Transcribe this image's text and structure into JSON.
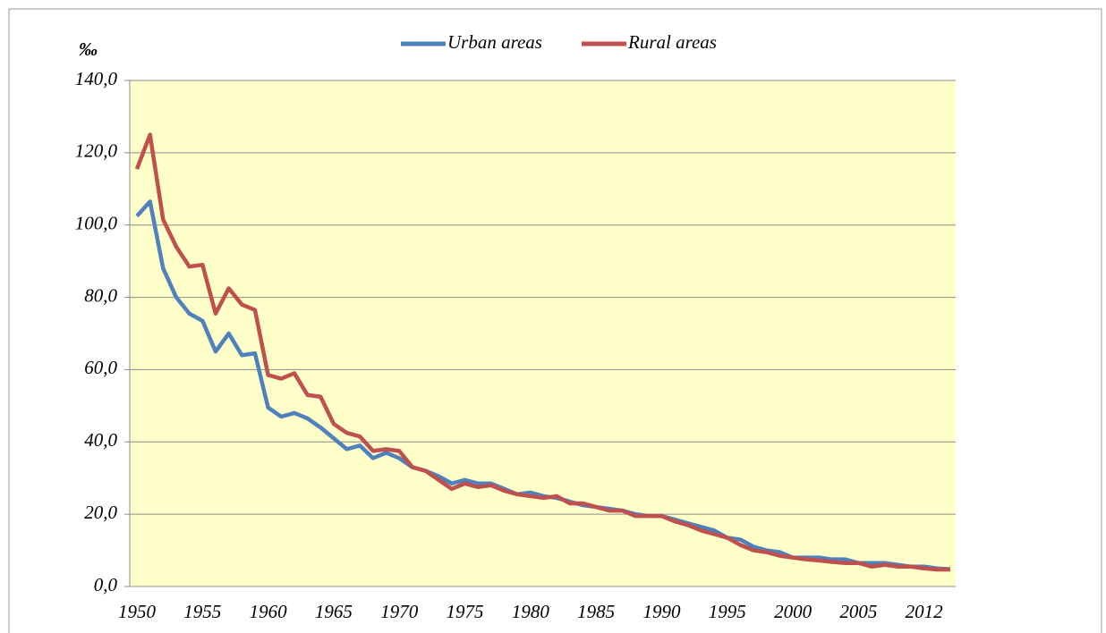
{
  "chart_data": {
    "type": "line",
    "y_label": "‰",
    "categories": [
      "1950",
      null,
      null,
      null,
      null,
      "1955",
      null,
      null,
      null,
      null,
      "1960",
      null,
      null,
      null,
      null,
      "1965",
      null,
      null,
      null,
      null,
      "1970",
      null,
      null,
      null,
      null,
      "1975",
      null,
      null,
      null,
      null,
      "1980",
      null,
      null,
      null,
      null,
      "1985",
      null,
      null,
      null,
      null,
      "1990",
      null,
      null,
      null,
      null,
      "1995",
      null,
      null,
      null,
      null,
      "2000",
      null,
      null,
      null,
      null,
      "2005",
      null,
      null,
      null,
      null,
      "2012",
      null,
      null
    ],
    "series": [
      {
        "name": "Urban areas",
        "color": "#4f81bd",
        "values": [
          102.5,
          106.5,
          88,
          80,
          75.5,
          73.5,
          65,
          70,
          64,
          64.5,
          49.5,
          47,
          48,
          46.5,
          44,
          41,
          38,
          39,
          35.5,
          37,
          35.5,
          33,
          32,
          30.5,
          28.5,
          29.5,
          28.5,
          28.5,
          27,
          25.5,
          26,
          25,
          24.5,
          23.5,
          22.5,
          22,
          21.5,
          21,
          20,
          19.5,
          19.5,
          18.5,
          17.5,
          16.5,
          15.5,
          13.5,
          13,
          11,
          10,
          9.5,
          8,
          8,
          8,
          7.5,
          7.5,
          6.5,
          6.5,
          6.5,
          6,
          5.5,
          5.5,
          5,
          4.8
        ]
      },
      {
        "name": "Rural areas",
        "color": "#c0504d",
        "values": [
          115.5,
          125,
          101.5,
          94,
          88.5,
          89,
          75.5,
          82.5,
          78,
          76.5,
          58.5,
          57.5,
          59,
          53,
          52.5,
          45,
          42.5,
          41.5,
          37.5,
          38,
          37.5,
          33,
          32,
          29.5,
          27,
          28.5,
          27.5,
          28,
          26.5,
          25.5,
          25,
          24.5,
          25,
          23,
          23,
          22,
          21,
          21,
          19.5,
          19.5,
          19.5,
          18,
          17,
          15.5,
          14.5,
          13.5,
          11.5,
          10,
          9.5,
          8.5,
          8,
          7.5,
          7.2,
          6.8,
          6.5,
          6.5,
          5.5,
          6,
          5.5,
          5.5,
          5,
          4.7,
          4.7
        ]
      }
    ],
    "ylim": [
      0,
      140
    ],
    "yticks": [
      {
        "value": 0,
        "label": "0,0"
      },
      {
        "value": 20,
        "label": "20,0"
      },
      {
        "value": 40,
        "label": "40,0"
      },
      {
        "value": 60,
        "label": "60,0"
      },
      {
        "value": 80,
        "label": "80,0"
      },
      {
        "value": 100,
        "label": "100,0"
      },
      {
        "value": 120,
        "label": "120,0"
      },
      {
        "value": 140,
        "label": "140,0"
      }
    ],
    "grid": true,
    "legend": "top",
    "plot_background": "#ffffc9"
  }
}
